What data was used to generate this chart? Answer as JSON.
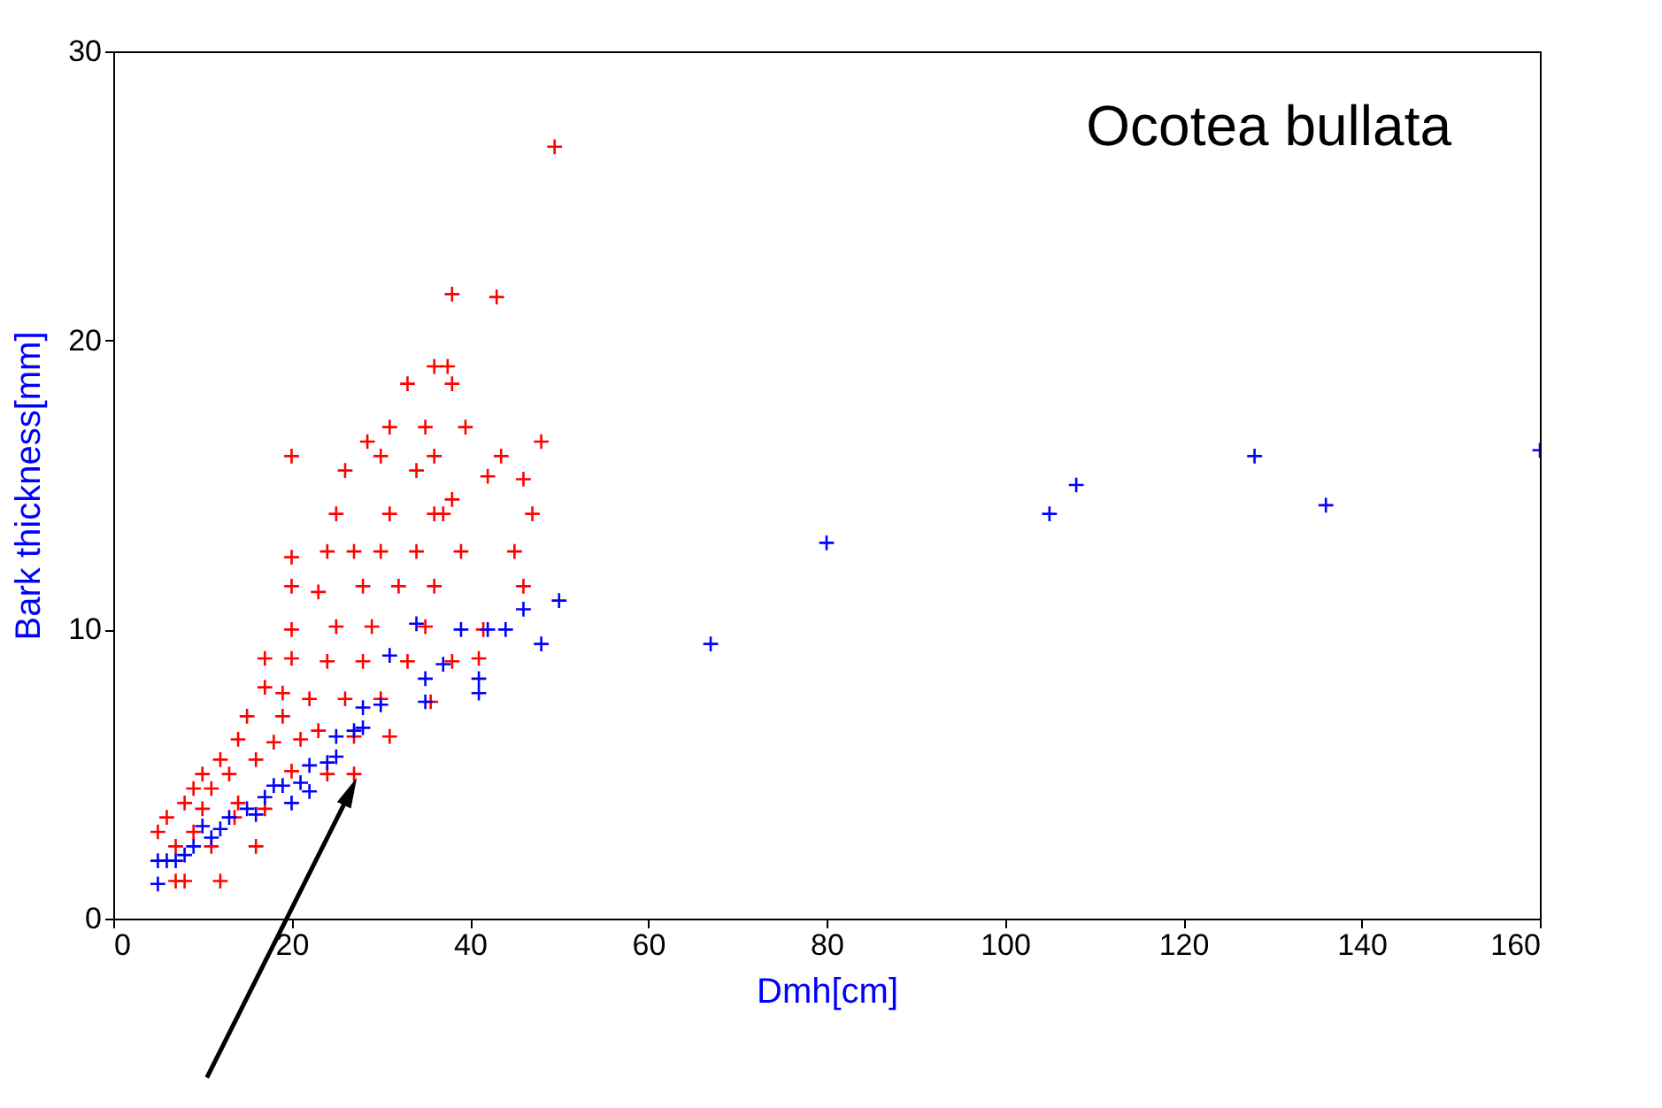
{
  "chart_data": {
    "type": "scatter",
    "title": "Ocotea bullata",
    "xlabel": "Dmh[cm]",
    "ylabel": "Bark thickness[mm]",
    "xlim": [
      0,
      160
    ],
    "xticks": [
      0,
      20,
      40,
      60,
      80,
      100,
      120,
      140,
      160
    ],
    "ylim": [
      0,
      30
    ],
    "yticks": [
      0,
      10,
      20,
      30
    ],
    "grid": false,
    "legend": false,
    "marker": "cross",
    "series": [
      {
        "color": "#ff0000",
        "x": [
          49.5,
          38,
          43,
          36,
          37.5,
          33,
          38,
          35,
          31,
          39.5,
          20,
          30,
          43.5,
          48,
          28.5,
          36,
          26,
          34,
          38,
          42,
          46,
          25,
          36,
          31,
          37,
          47,
          20,
          24,
          27,
          30,
          34,
          39,
          45,
          20,
          23,
          28,
          32,
          36,
          46,
          20,
          25,
          29,
          35,
          41.5,
          20,
          17,
          24,
          28,
          33,
          38,
          41,
          17,
          19,
          22,
          26,
          30,
          35.6,
          15,
          19,
          23,
          27,
          31,
          14,
          18,
          21,
          12,
          16,
          20,
          24,
          27,
          10,
          13,
          9,
          11,
          8,
          14,
          17,
          6,
          10,
          13.6,
          5,
          9,
          16,
          7,
          11,
          7,
          8,
          12
        ],
        "values": [
          26.7,
          21.6,
          21.5,
          19.1,
          19.1,
          18.5,
          18.5,
          17,
          17,
          17,
          16,
          16,
          16,
          16.5,
          16.5,
          16,
          15.5,
          15.5,
          14.5,
          15.3,
          15.2,
          14,
          14,
          14,
          14,
          14,
          12.5,
          12.7,
          12.7,
          12.7,
          12.7,
          12.7,
          12.7,
          11.5,
          11.3,
          11.5,
          11.5,
          11.5,
          11.5,
          10,
          10.1,
          10.1,
          10.1,
          10,
          9,
          9,
          8.9,
          8.9,
          8.9,
          8.9,
          9,
          8,
          7.8,
          7.6,
          7.6,
          7.6,
          7.5,
          7,
          7,
          6.5,
          6.3,
          6.3,
          6.2,
          6.1,
          6.2,
          5.5,
          5.5,
          5.1,
          5,
          5,
          5,
          5,
          4.5,
          4.5,
          4,
          4,
          3.8,
          3.5,
          3.8,
          3.5,
          3,
          3,
          2.5,
          2.5,
          2.5,
          1.3,
          1.3,
          1.3
        ]
      },
      {
        "color": "#0000ff",
        "x": [
          160,
          128,
          108,
          105,
          136,
          80,
          67,
          50,
          48,
          46,
          44,
          42,
          41,
          41,
          39,
          37,
          35,
          35,
          34,
          31,
          30,
          28,
          28,
          27,
          25,
          25,
          24,
          22,
          21,
          19,
          20,
          17,
          18,
          15,
          13,
          12,
          10,
          11,
          9,
          8,
          7,
          6,
          5,
          5,
          16,
          22
        ],
        "values": [
          16.2,
          16,
          15,
          14,
          14.3,
          13,
          9.5,
          11,
          9.5,
          10.7,
          10,
          10,
          8.3,
          7.8,
          10,
          8.8,
          8.3,
          7.5,
          10.2,
          9.1,
          7.4,
          7.3,
          6.6,
          6.5,
          6.3,
          5.6,
          5.4,
          5.3,
          4.7,
          4.6,
          4,
          4.2,
          4.6,
          3.8,
          3.5,
          3.1,
          3.2,
          2.8,
          2.5,
          2.2,
          2,
          2,
          1.2,
          2,
          3.6,
          4.4
        ]
      }
    ]
  }
}
